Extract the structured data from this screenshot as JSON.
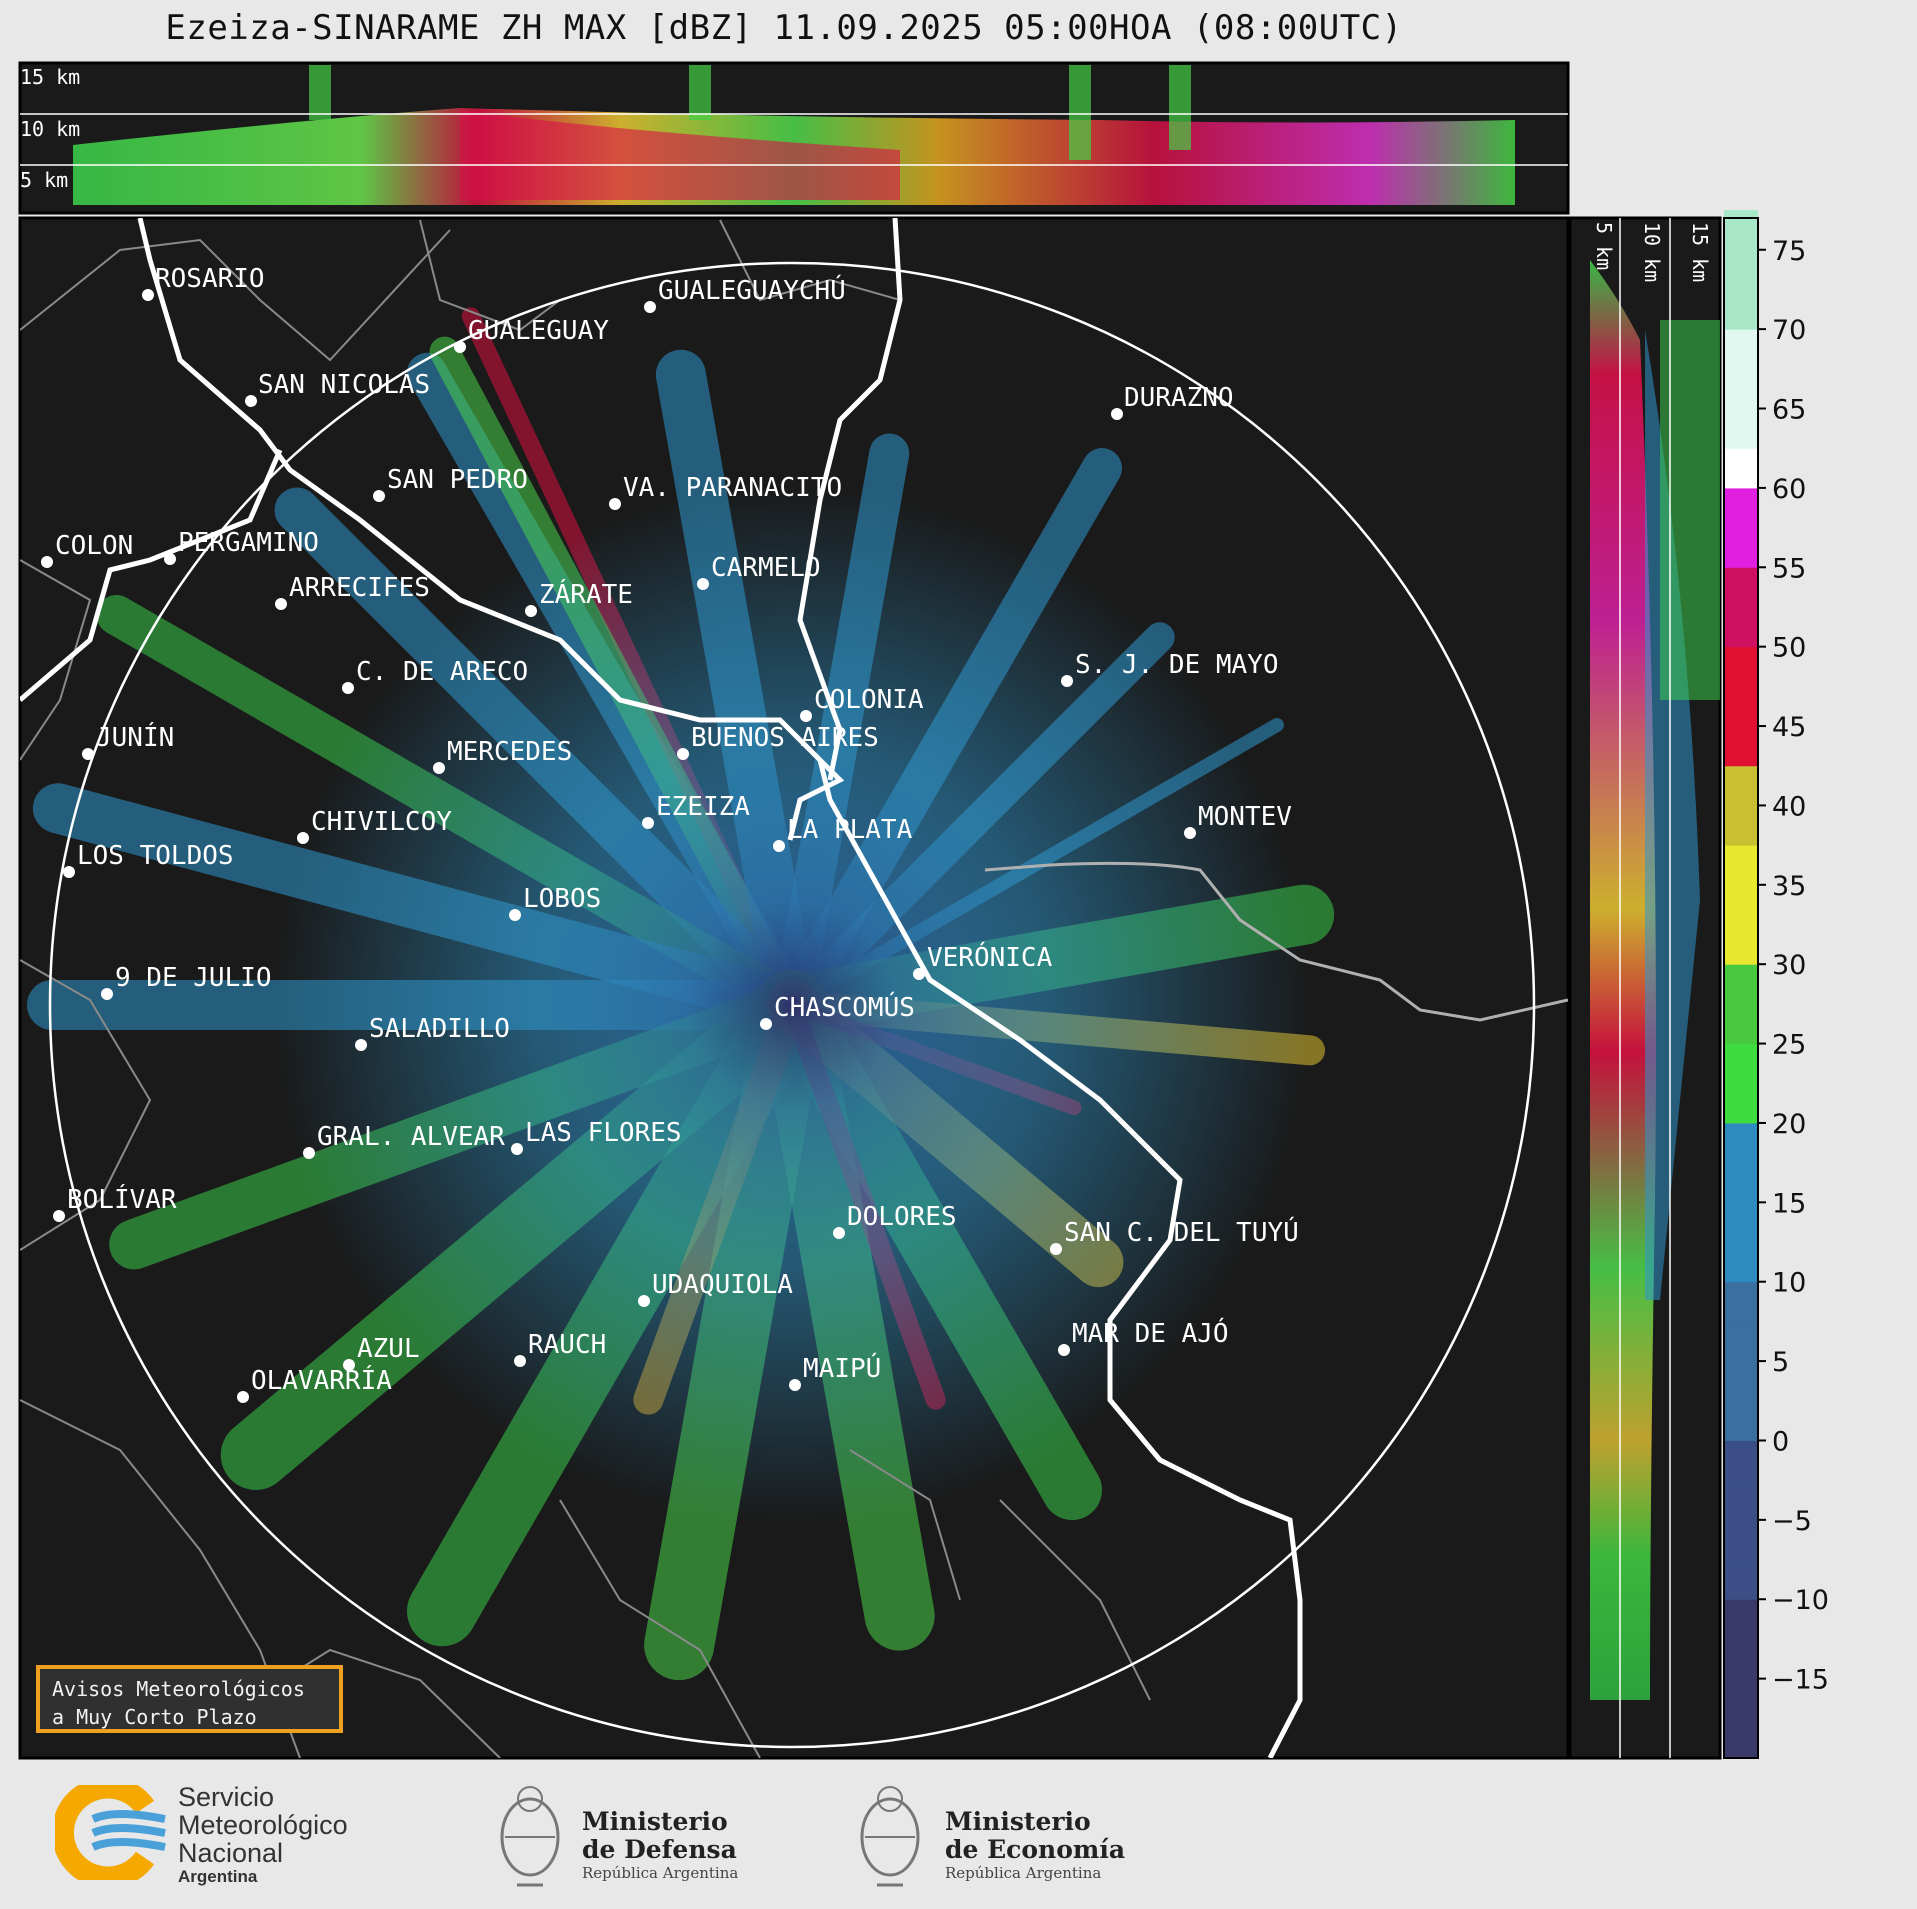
{
  "title": "Ezeiza-SINARAME ZH MAX [dBZ] 11.09.2025 05:00HOA (08:00UTC)",
  "top_panel_labels": [
    "15 km",
    "10 km",
    "5 km"
  ],
  "side_panel_labels": [
    "5 km",
    "10 km",
    "15 km"
  ],
  "colorbar_ticks": [
    "75",
    "70",
    "65",
    "60",
    "55",
    "50",
    "45",
    "40",
    "35",
    "30",
    "25",
    "20",
    "15",
    "10",
    "5",
    "0",
    "−5",
    "−10",
    "−15"
  ],
  "colors": {
    "background_map": "#1a1a1a",
    "range_ring": "#ffffff",
    "coast": "#ffffff",
    "province": "#808080",
    "accent_warning": "#f0a020"
  },
  "cities": [
    {
      "name": "ROSARIO"
    },
    {
      "name": "GUALEGUAYCHÚ"
    },
    {
      "name": "GUALEGUAY"
    },
    {
      "name": "SAN NICOLÁS"
    },
    {
      "name": "DURAZNO"
    },
    {
      "name": "SAN PEDRO"
    },
    {
      "name": "VA. PARANACITO"
    },
    {
      "name": "COLON"
    },
    {
      "name": "PERGAMINO"
    },
    {
      "name": "CARMELO"
    },
    {
      "name": "ARRECIFES"
    },
    {
      "name": "ZÁRATE"
    },
    {
      "name": "S. J. DE MAYO"
    },
    {
      "name": "C. DE ARECO"
    },
    {
      "name": "COLONIA"
    },
    {
      "name": "JUNÍN"
    },
    {
      "name": "BUENOS AIRES"
    },
    {
      "name": "MERCEDES"
    },
    {
      "name": "EZEIZA"
    },
    {
      "name": "MONTEV"
    },
    {
      "name": "CHIVILCOY"
    },
    {
      "name": "LA PLATA"
    },
    {
      "name": "LOS TOLDOS"
    },
    {
      "name": "LOBOS"
    },
    {
      "name": "VERÓNICA"
    },
    {
      "name": "9 DE JULIO"
    },
    {
      "name": "CHASCOMÚS"
    },
    {
      "name": "SALADILLO"
    },
    {
      "name": "GRAL. ALVEAR"
    },
    {
      "name": "LAS FLORES"
    },
    {
      "name": "BOLÍVAR"
    },
    {
      "name": "DOLORES"
    },
    {
      "name": "SAN C. DEL TUYÚ"
    },
    {
      "name": "UDAQUIOLA"
    },
    {
      "name": "MAR DE AJÓ"
    },
    {
      "name": "AZUL"
    },
    {
      "name": "RAUCH"
    },
    {
      "name": "OLAVARRÍA"
    },
    {
      "name": "MAIPÚ"
    }
  ],
  "warning_box": {
    "line1": "Avisos Meteorológicos",
    "line2": "a Muy Corto Plazo"
  },
  "logos": {
    "smn": {
      "line1": "Servicio",
      "line2": "Meteorológico",
      "line3": "Nacional",
      "line4": "Argentina"
    },
    "defensa": {
      "line1": "Ministerio",
      "line2": "de Defensa",
      "line3": "República Argentina"
    },
    "economia": {
      "line1": "Ministerio",
      "line2": "de Economía",
      "line3": "República Argentina"
    }
  }
}
